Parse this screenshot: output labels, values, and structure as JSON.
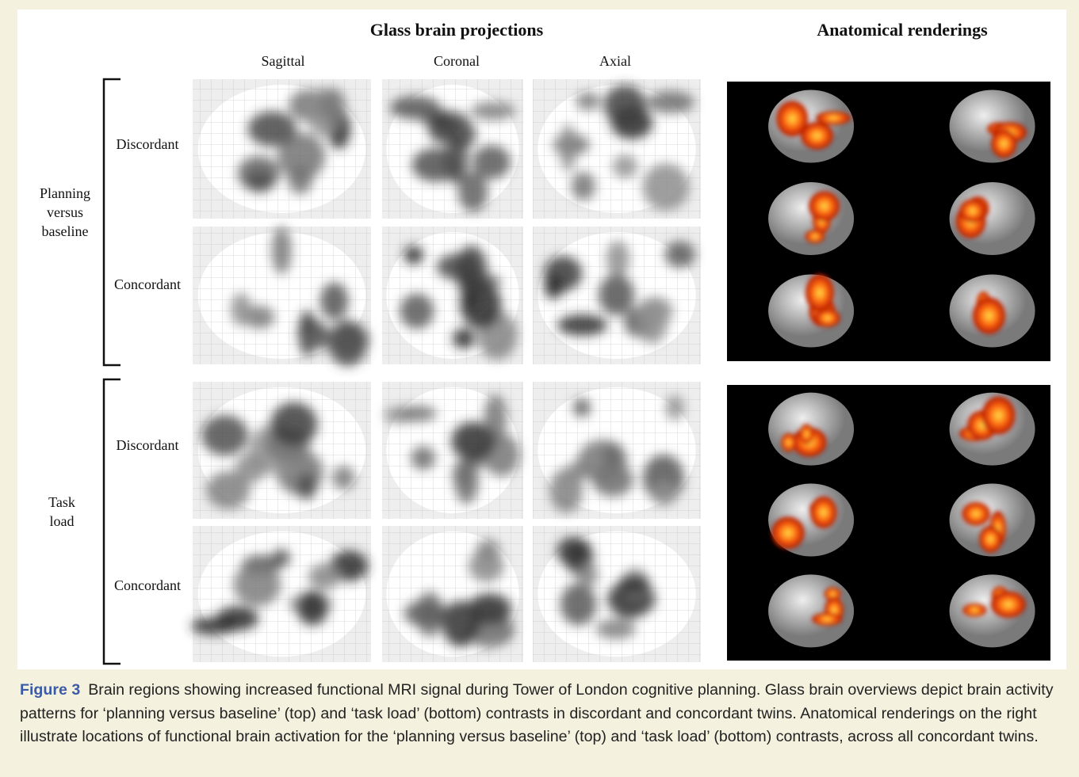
{
  "header": {
    "left_title": "Glass brain projections",
    "right_title": "Anatomical renderings"
  },
  "columns": [
    "Sagittal",
    "Coronal",
    "Axial"
  ],
  "groups": [
    {
      "label": [
        "Planning",
        "versus",
        "baseline"
      ],
      "rows": [
        "Discordant",
        "Concordant"
      ]
    },
    {
      "label": [
        "Task",
        "load"
      ],
      "rows": [
        "Discordant",
        "Concordant"
      ]
    }
  ],
  "caption": {
    "label": "Figure 3",
    "text": "Brain regions showing increased functional MRI signal during Tower of London cognitive planning. Glass brain overviews depict brain activity patterns for ‘planning versus baseline’ (top) and ‘task load’ (bottom) contrasts in discordant and concordant twins. Anatomical renderings on the right illustrate locations of functional brain activation for the ‘planning versus baseline’ (top) and ‘task load’ (bottom) contrasts, across all concordant twins."
  }
}
